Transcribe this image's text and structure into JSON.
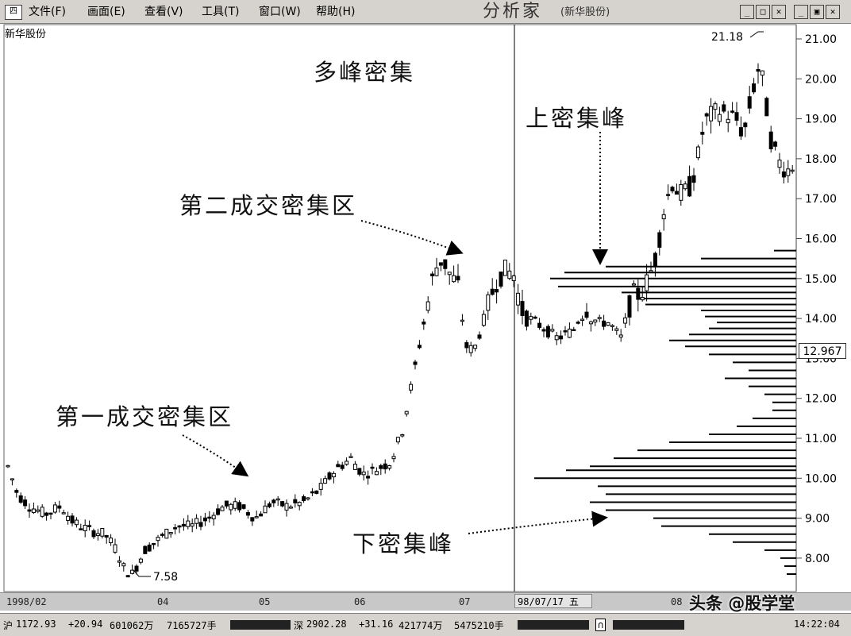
{
  "menubar": {
    "app_icon": "四",
    "items": [
      "文件(F)",
      "画面(E)",
      "查看(V)",
      "工具(T)",
      "窗口(W)",
      "帮助(H)"
    ],
    "title": "分析家",
    "subtitle": "(新华股份)"
  },
  "stock_name": "新华股份",
  "annotations": {
    "multi_peak": "多峰密集",
    "upper_peak": "上密集峰",
    "zone2": "第二成交密集区",
    "zone1": "第一成交密集区",
    "lower_peak": "下密集峰"
  },
  "price_axis": {
    "ticks": [
      "21.00",
      "20.00",
      "19.00",
      "18.00",
      "17.00",
      "16.00",
      "15.00",
      "14.00",
      "13.00",
      "12.00",
      "11.00",
      "10.00",
      "9.00",
      "8.00"
    ],
    "current": "12.967"
  },
  "labels": {
    "high": "21.18",
    "low": "7.58"
  },
  "date_axis": {
    "ticks": [
      "1998/02",
      "04",
      "05",
      "06",
      "07",
      "08"
    ],
    "cursor": "98/07/17 五"
  },
  "status": {
    "sh_label": "沪",
    "sh_index": "1172.93",
    "sh_change": "+20.94",
    "sh_amount": "601062万",
    "sh_volume": "7165727手",
    "sz_label": "深",
    "sz_index": "2902.28",
    "sz_change": "+31.16",
    "sz_amount": "421774万",
    "sz_volume": "5475210手",
    "alarm_icon": "∩",
    "time": "14:22:04"
  },
  "watermark": "头条 @股学堂",
  "colors": {
    "background": "#ffffff",
    "candle": "#000000",
    "menubar": "#d6d3ce"
  }
}
